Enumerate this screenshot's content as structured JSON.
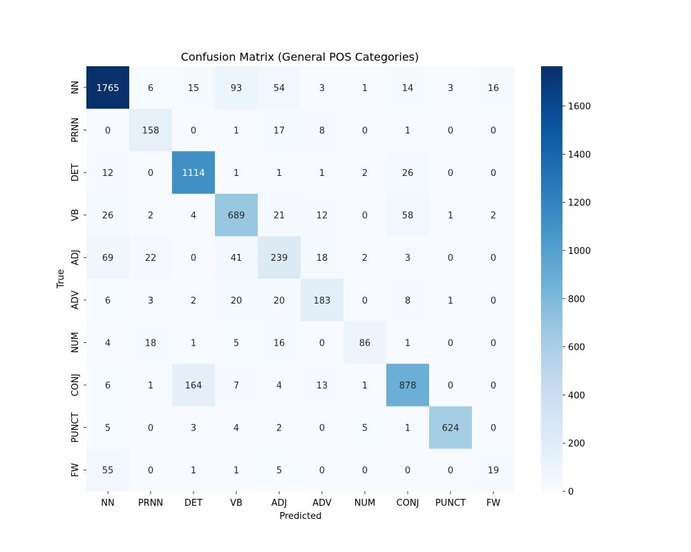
{
  "chart_data": {
    "type": "heatmap",
    "title": "Confusion Matrix (General POS Categories)",
    "xlabel": "Predicted",
    "ylabel": "True",
    "x_categories": [
      "NN",
      "PRNN",
      "DET",
      "VB",
      "ADJ",
      "ADV",
      "NUM",
      "CONJ",
      "PUNCT",
      "FW"
    ],
    "y_categories": [
      "NN",
      "PRNN",
      "DET",
      "VB",
      "ADJ",
      "ADV",
      "NUM",
      "CONJ",
      "PUNCT",
      "FW"
    ],
    "values": [
      [
        1765,
        6,
        15,
        93,
        54,
        3,
        1,
        14,
        3,
        16
      ],
      [
        0,
        158,
        0,
        1,
        17,
        8,
        0,
        1,
        0,
        0
      ],
      [
        12,
        0,
        1114,
        1,
        1,
        1,
        2,
        26,
        0,
        0
      ],
      [
        26,
        2,
        4,
        689,
        21,
        12,
        0,
        58,
        1,
        2
      ],
      [
        69,
        22,
        0,
        41,
        239,
        18,
        2,
        3,
        0,
        0
      ],
      [
        6,
        3,
        2,
        20,
        20,
        183,
        0,
        8,
        1,
        0
      ],
      [
        4,
        18,
        1,
        5,
        16,
        0,
        86,
        1,
        0,
        0
      ],
      [
        6,
        1,
        164,
        7,
        4,
        13,
        1,
        878,
        0,
        0
      ],
      [
        5,
        0,
        3,
        4,
        2,
        0,
        5,
        1,
        624,
        0
      ],
      [
        55,
        0,
        1,
        1,
        5,
        0,
        0,
        0,
        0,
        19
      ]
    ],
    "colorscale": "Blues",
    "colorbar": {
      "range": [
        0,
        1765
      ],
      "ticks": [
        0,
        200,
        400,
        600,
        800,
        1000,
        1200,
        1400,
        1600
      ]
    },
    "grid": false
  }
}
